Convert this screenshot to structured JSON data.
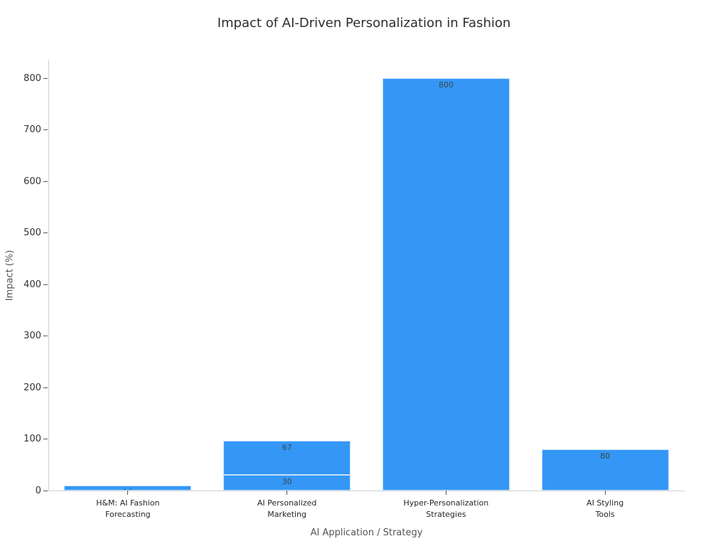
{
  "chart_data": {
    "type": "bar",
    "stacked": true,
    "title": "Impact of AI-Driven Personalization in Fashion",
    "xlabel": "AI Application / Strategy",
    "ylabel": "Impact (%)",
    "ylim": [
      0,
      800
    ],
    "yticks": [
      0,
      100,
      200,
      300,
      400,
      500,
      600,
      700,
      800
    ],
    "grid": false,
    "legend": "none",
    "categories": [
      "H&M: AI Fashion\nForecasting",
      "AI Personalized\nMarketing",
      "Hyper-Personalization\nStrategies",
      "AI Styling\nTools"
    ],
    "bars": [
      {
        "category": "H&M: AI Fashion Forecasting",
        "segments": [
          {
            "value": 10,
            "label": "10"
          }
        ]
      },
      {
        "category": "AI Personalized Marketing",
        "segments": [
          {
            "value": 30,
            "label": "30"
          },
          {
            "value": 67,
            "label": "67"
          }
        ]
      },
      {
        "category": "Hyper-Personalization Strategies",
        "segments": [
          {
            "value": 800,
            "label": "800"
          }
        ]
      },
      {
        "category": "AI Styling Tools",
        "segments": [
          {
            "value": 80,
            "label": "80"
          }
        ]
      }
    ],
    "colors": {
      "bar_fill": "#3497f6",
      "bar_edge": "#dff0fb",
      "value_label_text": "#37474f",
      "tick_text": "#333333",
      "axis_title_text": "#555555",
      "spine": "#cbcfd3",
      "background": "#ffffff"
    }
  }
}
